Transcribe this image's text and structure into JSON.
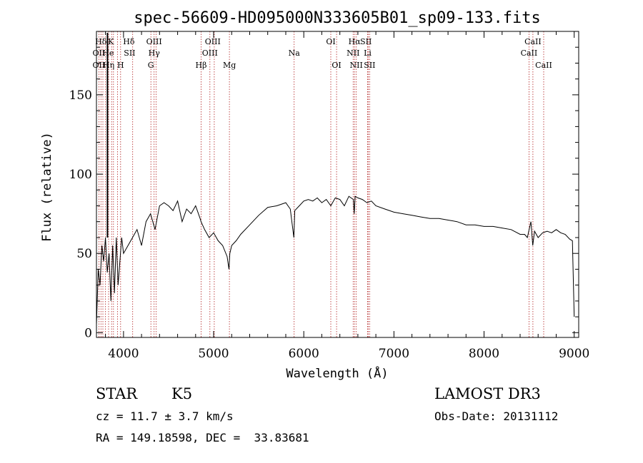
{
  "chart_data": {
    "type": "line",
    "title": "spec-56609-HD095000N333605B01_sp09-133.fits",
    "xlabel": "Wavelength (Å)",
    "ylabel": "Flux (relative)",
    "xlim": [
      3700,
      9050
    ],
    "ylim": [
      -3,
      190
    ],
    "x_ticks": [
      4000,
      5000,
      6000,
      7000,
      8000,
      9000
    ],
    "y_ticks": [
      0,
      50,
      100,
      150
    ],
    "grid": false,
    "series": [
      {
        "name": "flux",
        "x": [
          3700,
          3720,
          3740,
          3760,
          3780,
          3800,
          3820,
          3840,
          3860,
          3880,
          3900,
          3920,
          3940,
          3960,
          3980,
          4000,
          4050,
          4100,
          4150,
          4200,
          4250,
          4300,
          4350,
          4400,
          4450,
          4500,
          4550,
          4600,
          4650,
          4700,
          4750,
          4800,
          4850,
          4860,
          4900,
          4950,
          5000,
          5050,
          5100,
          5150,
          5170,
          5180,
          5200,
          5250,
          5300,
          5400,
          5500,
          5600,
          5700,
          5800,
          5850,
          5890,
          5900,
          5950,
          6000,
          6050,
          6100,
          6150,
          6200,
          6250,
          6300,
          6350,
          6400,
          6450,
          6500,
          6550,
          6560,
          6570,
          6600,
          6650,
          6700,
          6750,
          6800,
          6900,
          7000,
          7100,
          7200,
          7300,
          7400,
          7500,
          7600,
          7700,
          7800,
          7900,
          8000,
          8100,
          8200,
          8300,
          8400,
          8450,
          8480,
          8500,
          8520,
          8540,
          8560,
          8600,
          8650,
          8700,
          8750,
          8800,
          8850,
          8900,
          8950,
          8980,
          9000
        ],
        "y": [
          5,
          40,
          30,
          55,
          45,
          60,
          38,
          50,
          20,
          55,
          25,
          60,
          30,
          45,
          60,
          50,
          55,
          60,
          65,
          55,
          70,
          75,
          65,
          80,
          82,
          80,
          77,
          83,
          70,
          78,
          75,
          80,
          72,
          70,
          65,
          60,
          63,
          58,
          55,
          48,
          40,
          50,
          55,
          58,
          62,
          68,
          74,
          79,
          80,
          82,
          78,
          60,
          77,
          80,
          83,
          84,
          83,
          85,
          82,
          84,
          80,
          85,
          84,
          80,
          86,
          84,
          75,
          86,
          85,
          84,
          82,
          83,
          80,
          78,
          76,
          75,
          74,
          73,
          72,
          72,
          71,
          70,
          68,
          68,
          67,
          67,
          66,
          65,
          62,
          62,
          60,
          65,
          70,
          55,
          64,
          60,
          63,
          64,
          63,
          65,
          63,
          62,
          59,
          58,
          10
        ]
      }
    ],
    "spectral_lines": [
      {
        "label": "Hδ",
        "x": 3750,
        "row": 0
      },
      {
        "label": "K",
        "x": 3860,
        "row": 0
      },
      {
        "label": "Hδ",
        "x": 4060,
        "row": 0
      },
      {
        "label": "OIII",
        "x": 4340,
        "row": 0
      },
      {
        "label": "OIII",
        "x": 4990,
        "row": 0
      },
      {
        "label": "OI",
        "x": 6300,
        "row": 0
      },
      {
        "label": "Hα",
        "x": 6563,
        "row": 0
      },
      {
        "label": "SII",
        "x": 6690,
        "row": 0
      },
      {
        "label": "CaII",
        "x": 8542,
        "row": 0
      },
      {
        "label": "OII",
        "x": 3727,
        "row": 1
      },
      {
        "label": "He",
        "x": 3830,
        "row": 1
      },
      {
        "label": "SII",
        "x": 4068,
        "row": 1
      },
      {
        "label": "Hγ",
        "x": 4340,
        "row": 1
      },
      {
        "label": "OIII",
        "x": 4959,
        "row": 1
      },
      {
        "label": "Na",
        "x": 5893,
        "row": 1
      },
      {
        "label": "NII",
        "x": 6548,
        "row": 1
      },
      {
        "label": "Li",
        "x": 6708,
        "row": 1
      },
      {
        "label": "CaII",
        "x": 8498,
        "row": 1
      },
      {
        "label": "OII",
        "x": 3727,
        "row": 2
      },
      {
        "label": "Hη",
        "x": 3835,
        "row": 2
      },
      {
        "label": "H",
        "x": 3968,
        "row": 2
      },
      {
        "label": "G",
        "x": 4304,
        "row": 2
      },
      {
        "label": "Hβ",
        "x": 4861,
        "row": 2
      },
      {
        "label": "Mg",
        "x": 5175,
        "row": 2
      },
      {
        "label": "OI",
        "x": 6364,
        "row": 2
      },
      {
        "label": "NII",
        "x": 6583,
        "row": 2
      },
      {
        "label": "SII",
        "x": 6731,
        "row": 2
      },
      {
        "label": "CaII",
        "x": 8662,
        "row": 2
      }
    ],
    "line_markers_x": [
      3727,
      3750,
      3771,
      3798,
      3835,
      3868,
      3889,
      3934,
      3968,
      4102,
      4304,
      4340,
      4363,
      4861,
      4959,
      5007,
      5175,
      5893,
      6300,
      6364,
      6548,
      6563,
      6583,
      6708,
      6717,
      6731,
      8498,
      8542,
      8662
    ]
  },
  "info": {
    "class_label": "STAR",
    "subclass": "K5",
    "survey": "LAMOST DR3",
    "redshift": "cz = 11.7 ± 3.7 km/s",
    "obs_date": "Obs-Date: 20131112",
    "coords": "RA = 149.18598, DEC =  33.83681"
  },
  "colors": {
    "axis": "#000000",
    "spectrum": "#000000",
    "line_markers": "#b22222"
  }
}
